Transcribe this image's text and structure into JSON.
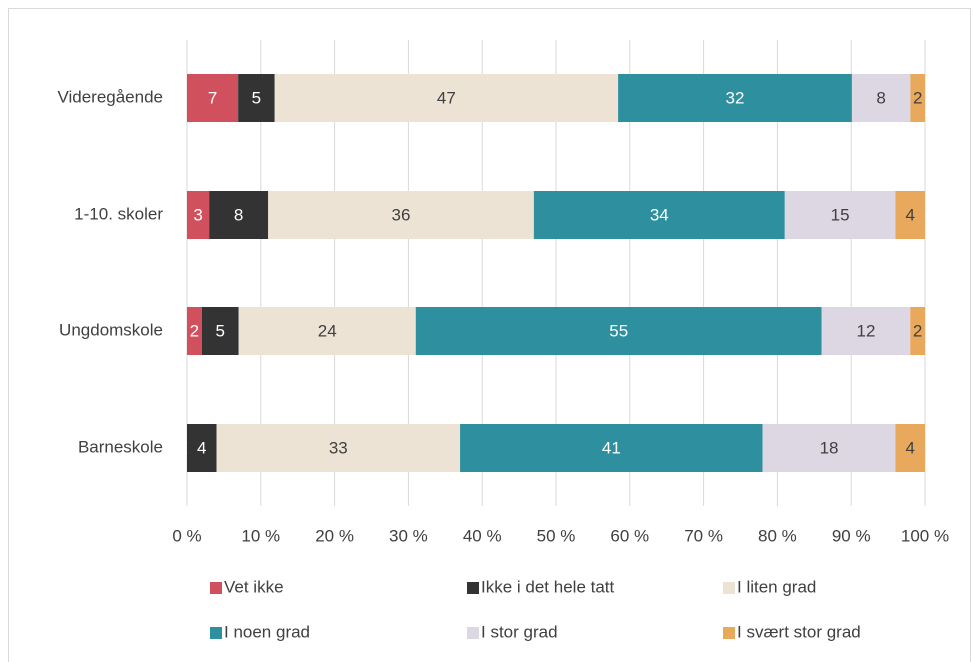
{
  "chart_data": {
    "type": "bar",
    "orientation": "horizontal",
    "stacked": "percent",
    "categories": [
      "Videregående",
      "1-10. skoler",
      "Ungdomskole",
      "Barneskole"
    ],
    "series": [
      {
        "name": "Vet ikke",
        "color": "#d0505e",
        "values": [
          7,
          3,
          2,
          0
        ]
      },
      {
        "name": "Ikke i det hele tatt",
        "color": "#333333",
        "values": [
          5,
          8,
          5,
          4
        ]
      },
      {
        "name": "I liten grad",
        "color": "#ede3d5",
        "values": [
          47,
          36,
          24,
          33
        ]
      },
      {
        "name": "I noen grad",
        "color": "#2e8f9e",
        "values": [
          32,
          34,
          55,
          41
        ]
      },
      {
        "name": "I stor grad",
        "color": "#ddd6e3",
        "values": [
          8,
          15,
          12,
          18
        ]
      },
      {
        "name": "I svært stor grad",
        "color": "#e8a95c",
        "values": [
          2,
          4,
          2,
          4
        ]
      }
    ],
    "xlim": [
      0,
      100
    ],
    "xticks": [
      {
        "value": 0,
        "label": "0 %"
      },
      {
        "value": 10,
        "label": "10 %"
      },
      {
        "value": 20,
        "label": "20 %"
      },
      {
        "value": 30,
        "label": "30 %"
      },
      {
        "value": 40,
        "label": "40 %"
      },
      {
        "value": 50,
        "label": "50 %"
      },
      {
        "value": 60,
        "label": "60 %"
      },
      {
        "value": 70,
        "label": "70 %"
      },
      {
        "value": 80,
        "label": "80 %"
      },
      {
        "value": 90,
        "label": "90 %"
      },
      {
        "value": 100,
        "label": "100 %"
      }
    ],
    "grid": true,
    "legend": "bottom"
  }
}
